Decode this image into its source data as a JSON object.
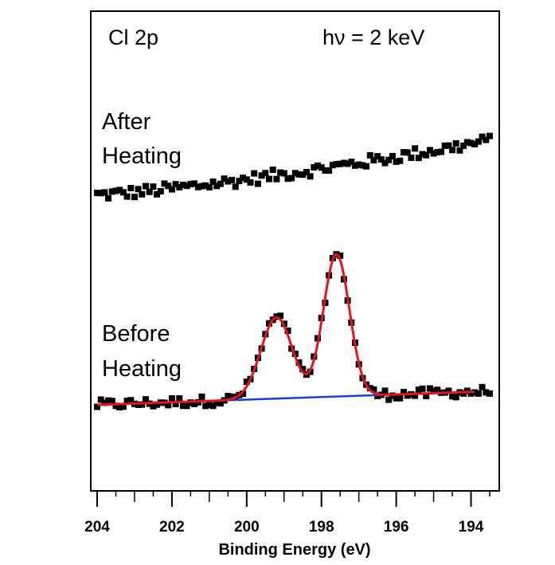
{
  "chart_data": {
    "type": "scatter",
    "xlabel": "Binding Energy (eV)",
    "ylabel": "",
    "xlim": [
      204,
      193.5
    ],
    "x_reversed": true,
    "x_ticks": [
      204,
      202,
      200,
      198,
      196,
      194
    ],
    "annotations": {
      "element": "Cl 2p",
      "photon_energy": "hν = 2 keV",
      "after_line1": "After",
      "after_line2": "Heating",
      "before_line1": "Before",
      "before_line2": "Heating"
    },
    "after_heating": {
      "offset": 0.62,
      "base_start": 0.0,
      "base_end": 0.16,
      "noise": 0.018
    },
    "before_heating": {
      "offset": 0.0,
      "baseline_start": 0.0,
      "baseline_end": 0.04,
      "peaks": [
        {
          "center": 199.2,
          "amplitude": 0.24,
          "sigma": 0.42
        },
        {
          "center": 197.6,
          "amplitude": 0.42,
          "sigma": 0.35
        }
      ],
      "noise": 0.015
    },
    "colors": {
      "data": "#000000",
      "fit": "#e8141b",
      "background": "#1a3cdc"
    }
  }
}
